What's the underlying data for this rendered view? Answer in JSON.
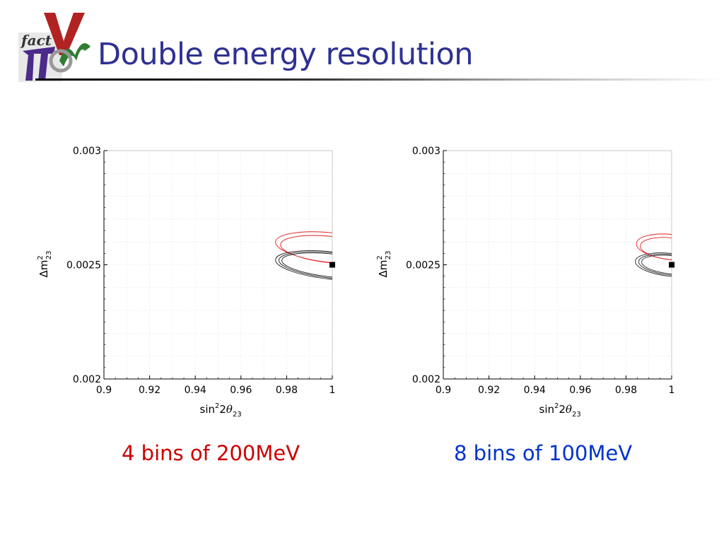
{
  "title": "Double energy resolution",
  "logo": {
    "text_fact": "fact",
    "text_nu": "ν",
    "text_pi": "π",
    "accent_red": "#c0392b",
    "accent_purple": "#4b2a8a",
    "accent_green": "#2e7d32"
  },
  "colors": {
    "title": "#2e3192",
    "caption_left": "#cc0000",
    "caption_right": "#0033cc",
    "red_contour": "#dd2222",
    "black_contour": "#222222"
  },
  "captions": {
    "left": "4 bins of 200MeV",
    "right": "8 bins of 100MeV"
  },
  "chart_data": [
    {
      "type": "scatter",
      "xlabel": {
        "main": "sin",
        "sup": "2",
        "mid": "2",
        "greek": "θ",
        "sub": "23"
      },
      "ylabel": {
        "main": "Δm",
        "sup": "2",
        "sub": "23"
      },
      "xlim": [
        0.9,
        1.0
      ],
      "ylim": [
        0.002,
        0.003
      ],
      "x_ticks": [
        "0.9",
        "0.92",
        "0.94",
        "0.96",
        "0.98",
        "1"
      ],
      "y_ticks": [
        "0.002",
        "0.0025",
        "0.003"
      ],
      "x_tick_values": [
        0.9,
        0.92,
        0.94,
        0.96,
        0.98,
        1.0
      ],
      "y_tick_values": [
        0.002,
        0.0025,
        0.003
      ],
      "grid": true,
      "true_point": {
        "x": 1.0,
        "y": 0.0025
      },
      "contours": [
        {
          "color": "red",
          "cx": 0.9995,
          "cy": 0.002575,
          "rx": 0.0245,
          "ry": 6.5e-05
        },
        {
          "color": "red",
          "cx": 0.9997,
          "cy": 0.002566,
          "rx": 0.0225,
          "ry": 5.8e-05
        },
        {
          "color": "black",
          "cx": 0.9995,
          "cy": 0.002497,
          "rx": 0.0245,
          "ry": 6e-05
        },
        {
          "color": "black",
          "cx": 0.9997,
          "cy": 0.002497,
          "rx": 0.0232,
          "ry": 5.5e-05
        },
        {
          "color": "black",
          "cx": 0.9998,
          "cy": 0.002497,
          "rx": 0.022,
          "ry": 5e-05
        }
      ]
    },
    {
      "type": "scatter",
      "xlabel": {
        "main": "sin",
        "sup": "2",
        "mid": "2",
        "greek": "θ",
        "sub": "23"
      },
      "ylabel": {
        "main": "Δm",
        "sup": "2",
        "sub": "23"
      },
      "xlim": [
        0.9,
        1.0
      ],
      "ylim": [
        0.002,
        0.003
      ],
      "x_ticks": [
        "0.9",
        "0.92",
        "0.94",
        "0.96",
        "0.98",
        "1"
      ],
      "y_ticks": [
        "0.002",
        "0.0025",
        "0.003"
      ],
      "x_tick_values": [
        0.9,
        0.92,
        0.94,
        0.96,
        0.98,
        1.0
      ],
      "y_tick_values": [
        0.002,
        0.0025,
        0.003
      ],
      "grid": true,
      "true_point": {
        "x": 1.0,
        "y": 0.0025
      },
      "contours": [
        {
          "color": "red",
          "cx": 0.9995,
          "cy": 0.002578,
          "rx": 0.015,
          "ry": 5.5e-05
        },
        {
          "color": "red",
          "cx": 0.9997,
          "cy": 0.00257,
          "rx": 0.0135,
          "ry": 4.8e-05
        },
        {
          "color": "black",
          "cx": 0.9995,
          "cy": 0.0025,
          "rx": 0.0155,
          "ry": 5e-05
        },
        {
          "color": "black",
          "cx": 0.9997,
          "cy": 0.0025,
          "rx": 0.0142,
          "ry": 4.5e-05
        },
        {
          "color": "black",
          "cx": 0.9998,
          "cy": 0.0025,
          "rx": 0.013,
          "ry": 4e-05
        }
      ]
    }
  ]
}
